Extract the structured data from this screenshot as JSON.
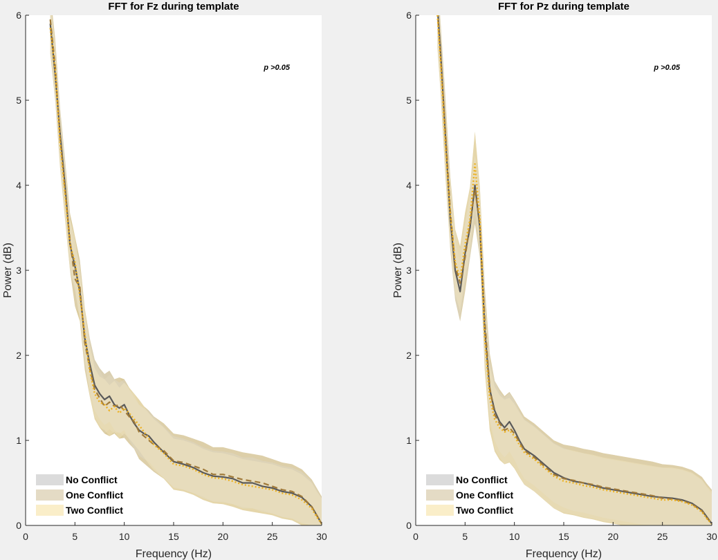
{
  "colors": {
    "figure_bg": "#f0f0f0",
    "axes_bg": "#ffffff",
    "no_conflict_line": "#595959",
    "no_conflict_band": "#d9d9d9",
    "one_conflict_line": "#a07a3a",
    "one_conflict_band": "#e3d9c2",
    "two_conflict_line": "#edb120",
    "two_conflict_band": "#faedc6",
    "overlap_band": "#d4c18a"
  },
  "chart_data": [
    {
      "type": "line",
      "title": "FFT for Fz during template",
      "xlabel": "Frequency (Hz)",
      "ylabel": "Power (dB)",
      "xlim": [
        0,
        30
      ],
      "ylim": [
        0,
        6
      ],
      "xticks": [
        "0",
        "5",
        "10",
        "15",
        "20",
        "25",
        "30"
      ],
      "yticks": [
        "0",
        "1",
        "2",
        "3",
        "4",
        "5",
        "6"
      ],
      "annotation": "p >0.05",
      "legend_position": "bottom-left",
      "x": [
        2.5,
        3,
        3.5,
        4,
        4.5,
        5,
        5.5,
        6,
        6.5,
        7,
        7.5,
        8,
        8.5,
        9,
        9.5,
        10,
        10.5,
        11,
        11.5,
        12,
        12.5,
        13,
        14,
        15,
        16,
        17,
        18,
        19,
        20,
        21,
        22,
        23,
        24,
        25,
        26,
        27,
        28,
        29,
        29.5,
        30
      ],
      "series": [
        {
          "name": "No Conflict",
          "style": "solid",
          "values": [
            5.9,
            5.3,
            4.6,
            4.0,
            3.3,
            3.05,
            2.75,
            2.2,
            1.9,
            1.65,
            1.55,
            1.48,
            1.52,
            1.42,
            1.38,
            1.42,
            1.3,
            1.2,
            1.12,
            1.08,
            1.05,
            0.98,
            0.86,
            0.75,
            0.72,
            0.68,
            0.62,
            0.58,
            0.57,
            0.55,
            0.5,
            0.5,
            0.46,
            0.44,
            0.4,
            0.38,
            0.33,
            0.22,
            0.12,
            0.02
          ],
          "band": 0.3
        },
        {
          "name": "One Conflict",
          "style": "dashed",
          "values": [
            5.95,
            5.4,
            4.55,
            3.95,
            3.35,
            2.9,
            2.8,
            2.15,
            1.85,
            1.6,
            1.5,
            1.4,
            1.45,
            1.4,
            1.42,
            1.35,
            1.28,
            1.22,
            1.1,
            1.05,
            1.0,
            0.95,
            0.88,
            0.76,
            0.74,
            0.7,
            0.66,
            0.6,
            0.6,
            0.57,
            0.54,
            0.52,
            0.5,
            0.46,
            0.42,
            0.4,
            0.34,
            0.22,
            0.12,
            0.02
          ],
          "band": 0.32
        },
        {
          "name": "Two Conflict",
          "style": "dotted",
          "values": [
            5.85,
            5.35,
            4.5,
            3.9,
            3.3,
            3.1,
            2.7,
            2.25,
            1.82,
            1.55,
            1.45,
            1.42,
            1.35,
            1.4,
            1.32,
            1.38,
            1.32,
            1.25,
            1.18,
            1.1,
            1.02,
            0.95,
            0.85,
            0.72,
            0.7,
            0.66,
            0.6,
            0.56,
            0.55,
            0.52,
            0.48,
            0.46,
            0.44,
            0.42,
            0.38,
            0.36,
            0.3,
            0.2,
            0.1,
            0.02
          ],
          "band": 0.3
        }
      ]
    },
    {
      "type": "line",
      "title": "FFT for Pz during template",
      "xlabel": "Frequency (Hz)",
      "ylabel": "Power (dB)",
      "xlim": [
        0,
        30
      ],
      "ylim": [
        0,
        6
      ],
      "xticks": [
        "0",
        "5",
        "10",
        "15",
        "20",
        "25",
        "30"
      ],
      "yticks": [
        "0",
        "1",
        "2",
        "3",
        "4",
        "5",
        "6"
      ],
      "annotation": "p >0.05",
      "legend_position": "bottom-left",
      "x": [
        2.2,
        2.5,
        3,
        3.5,
        4,
        4.5,
        5,
        5.5,
        6,
        6.5,
        7,
        7.5,
        8,
        8.5,
        9,
        9.5,
        10,
        10.5,
        11,
        12,
        13,
        14,
        15,
        16,
        17,
        18,
        19,
        20,
        21,
        22,
        23,
        24,
        25,
        26,
        27,
        28,
        29,
        29.5,
        30
      ],
      "series": [
        {
          "name": "No Conflict",
          "style": "solid",
          "values": [
            6.1,
            5.6,
            4.6,
            3.6,
            3.0,
            2.75,
            3.2,
            3.5,
            4.0,
            3.5,
            2.3,
            1.6,
            1.35,
            1.22,
            1.15,
            1.22,
            1.12,
            1.0,
            0.9,
            0.82,
            0.72,
            0.62,
            0.56,
            0.52,
            0.5,
            0.47,
            0.44,
            0.42,
            0.4,
            0.38,
            0.36,
            0.34,
            0.33,
            0.32,
            0.3,
            0.26,
            0.18,
            0.1,
            0.02
          ],
          "band": 0.35
        },
        {
          "name": "One Conflict",
          "style": "dashed",
          "values": [
            6.05,
            5.55,
            4.65,
            3.7,
            3.05,
            2.85,
            3.15,
            3.55,
            3.95,
            3.55,
            2.4,
            1.62,
            1.3,
            1.2,
            1.12,
            1.15,
            1.08,
            0.98,
            0.88,
            0.8,
            0.7,
            0.6,
            0.55,
            0.53,
            0.5,
            0.48,
            0.45,
            0.43,
            0.41,
            0.39,
            0.37,
            0.35,
            0.32,
            0.31,
            0.29,
            0.25,
            0.17,
            0.09,
            0.02
          ],
          "band": 0.4
        },
        {
          "name": "Two Conflict",
          "style": "dotted",
          "values": [
            6.0,
            5.5,
            4.5,
            3.65,
            3.1,
            2.9,
            3.3,
            3.6,
            4.25,
            3.6,
            2.2,
            1.5,
            1.25,
            1.15,
            1.1,
            1.12,
            1.05,
            0.95,
            0.86,
            0.78,
            0.68,
            0.58,
            0.52,
            0.5,
            0.47,
            0.45,
            0.42,
            0.4,
            0.38,
            0.36,
            0.34,
            0.32,
            0.3,
            0.3,
            0.28,
            0.24,
            0.16,
            0.08,
            0.02
          ],
          "band": 0.38
        }
      ]
    }
  ]
}
